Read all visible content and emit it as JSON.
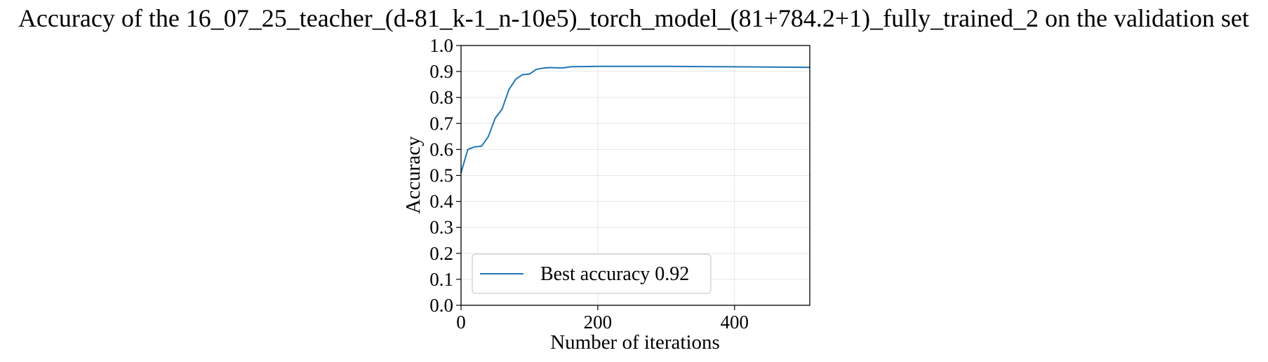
{
  "chart_data": {
    "type": "line",
    "title": "Accuracy of the 16_07_25_teacher_(d-81_k-1_n-10e5)_torch_model_(81+784.2+1)_fully_trained_2 on the validation set",
    "xlabel": "Number of iterations",
    "ylabel": "Accuracy",
    "xlim": [
      0,
      510
    ],
    "ylim": [
      0.0,
      1.0
    ],
    "xticks": [
      0,
      200,
      400
    ],
    "yticks": [
      0.0,
      0.1,
      0.2,
      0.3,
      0.4,
      0.5,
      0.6,
      0.7,
      0.8,
      0.9,
      1.0
    ],
    "grid": true,
    "legend_position": "lower-left",
    "series": [
      {
        "name": "Best accuracy 0.92",
        "color": "#1f77b4",
        "x": [
          0,
          10,
          20,
          30,
          40,
          50,
          60,
          70,
          80,
          90,
          100,
          110,
          120,
          130,
          140,
          150,
          160,
          170,
          180,
          200,
          250,
          300,
          350,
          400,
          450,
          510
        ],
        "y": [
          0.51,
          0.6,
          0.61,
          0.612,
          0.65,
          0.72,
          0.755,
          0.83,
          0.87,
          0.888,
          0.89,
          0.908,
          0.913,
          0.915,
          0.914,
          0.914,
          0.918,
          0.919,
          0.919,
          0.92,
          0.92,
          0.92,
          0.919,
          0.918,
          0.917,
          0.916
        ]
      }
    ]
  }
}
